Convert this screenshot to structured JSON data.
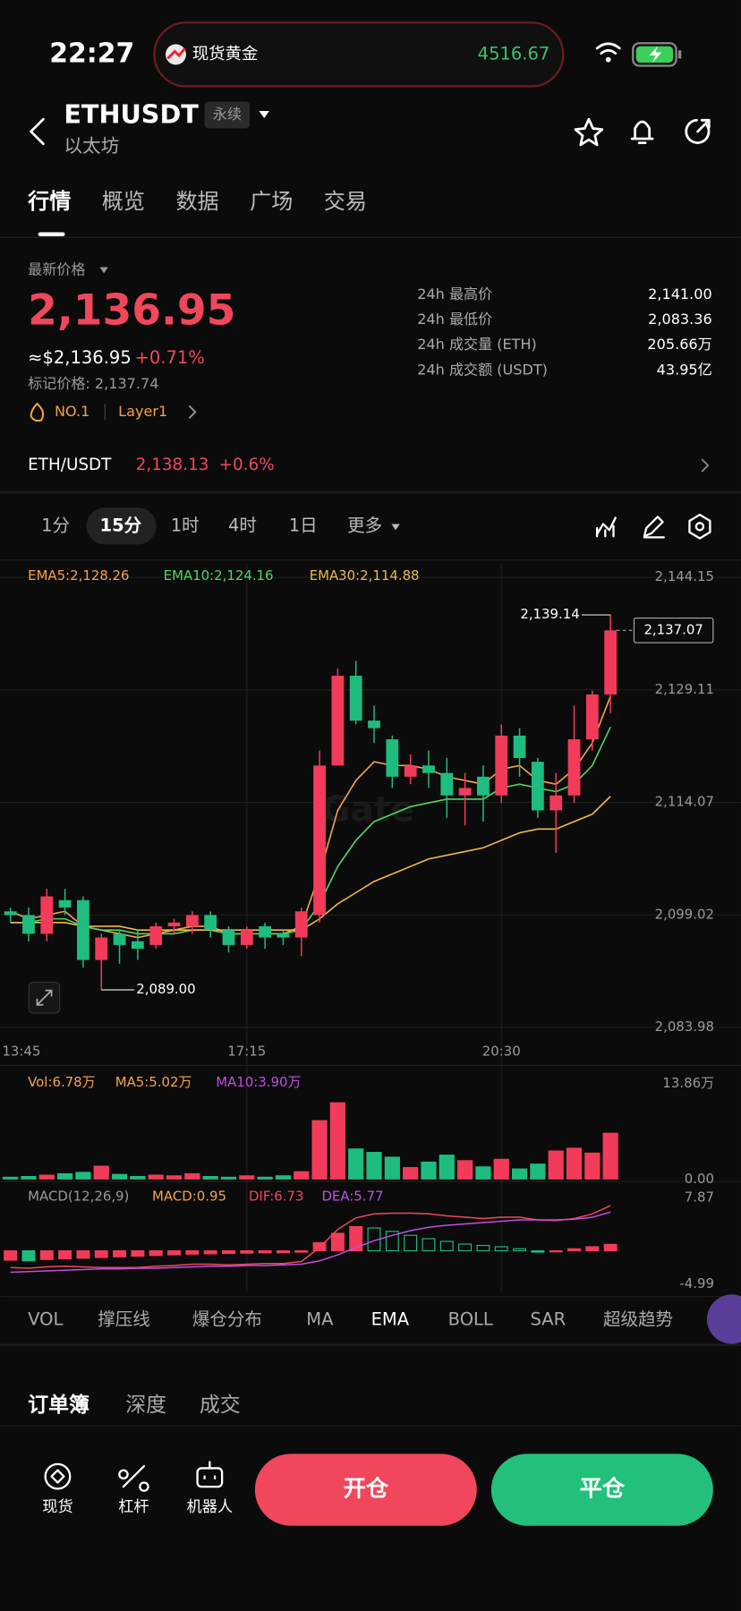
{
  "status": {
    "time": "22:27",
    "ticker": "现货黄金",
    "ticker_value": "4516.67"
  },
  "header": {
    "symbol": "ETHUSDT",
    "tag": "永续",
    "name": "以太坊"
  },
  "tabs": [
    "行情",
    "概览",
    "数据",
    "广场",
    "交易"
  ],
  "price": {
    "label": "最新价格",
    "last": "2,136.95",
    "usd": "≈$2,136.95",
    "change": "+0.71%",
    "mark": "标记价格: 2,137.74",
    "rank": "NO.1",
    "sector": "Layer1"
  },
  "stats": [
    {
      "label": "24h 最高价",
      "value": "2,141.00"
    },
    {
      "label": "24h 最低价",
      "value": "2,083.36"
    },
    {
      "label": "24h 成交量 (ETH)",
      "value": "205.66万"
    },
    {
      "label": "24h 成交额 (USDT)",
      "value": "43.95亿"
    }
  ],
  "spot": {
    "pair": "ETH/USDT",
    "price": "2,138.13",
    "change": "+0.6%"
  },
  "intervals": [
    "1分",
    "15分",
    "1时",
    "4时",
    "1日",
    "更多"
  ],
  "chart": {
    "type": "candlestick",
    "categories": [
      "13:45",
      null,
      null,
      null,
      null,
      null,
      null,
      null,
      null,
      null,
      null,
      null,
      null,
      "17:15",
      null,
      null,
      null,
      null,
      null,
      null,
      null,
      null,
      null,
      null,
      null,
      null,
      null,
      "20:30",
      null,
      null,
      null,
      null,
      null,
      null
    ],
    "open": [
      2099.5,
      2099,
      2096.5,
      2101,
      2101,
      2093,
      2096.5,
      2095.5,
      2095,
      2097.5,
      2097.5,
      2099,
      2097,
      2095,
      2097.5,
      2096.5,
      2096,
      2099,
      2119,
      2131,
      2125,
      2122.5,
      2117.5,
      2119,
      2118,
      2115,
      2117.5,
      2115,
      2123,
      2119.5,
      2113,
      2115,
      2122.5,
      2128.5
    ],
    "high": [
      2100,
      2100,
      2102.5,
      2102.5,
      2101.5,
      2096.5,
      2097,
      2097,
      2098,
      2098.5,
      2099.5,
      2099.5,
      2097.5,
      2097.5,
      2098,
      2097,
      2100,
      2121,
      2132,
      2133,
      2127,
      2123,
      2120.5,
      2121,
      2120,
      2118,
      2119,
      2124.5,
      2124,
      2120,
      2118,
      2127,
      2129,
      2139.14
    ],
    "low": [
      2098,
      2095.5,
      2095.5,
      2099,
      2092,
      2089,
      2092.5,
      2093,
      2094.5,
      2096.5,
      2096.5,
      2096,
      2094,
      2094.5,
      2094.5,
      2095,
      2093.5,
      2098,
      2119,
      2124.5,
      2122,
      2116,
      2116.5,
      2116,
      2112,
      2111,
      2111.5,
      2114,
      2117.5,
      2112,
      2107.3,
      2114,
      2121,
      2126
    ],
    "close": [
      2099,
      2096.5,
      2101.5,
      2100,
      2093,
      2096,
      2095,
      2094.5,
      2097.5,
      2098,
      2099,
      2097,
      2095,
      2097,
      2096,
      2096,
      2099.5,
      2119,
      2131,
      2125,
      2124,
      2117.5,
      2119,
      2118,
      2115,
      2116,
      2115,
      2123,
      2120,
      2113,
      2115,
      2122.5,
      2128.5,
      2137.07
    ],
    "up_color": "#f23b5a",
    "down_color": "#1ebd7f",
    "ylim": [
      2083.98,
      2144.15
    ],
    "yticks": [
      {
        "value": 2144.15,
        "label": "2,144.15"
      },
      {
        "value": 2129.11,
        "label": "2,129.11"
      },
      {
        "value": 2114.07,
        "label": "2,114.07"
      },
      {
        "value": 2099.02,
        "label": "2,099.02"
      },
      {
        "value": 2083.98,
        "label": "2,083.98"
      }
    ],
    "grid": true,
    "ema": [
      {
        "legend": "EMA5:2,128.26",
        "color": "#f5a34a",
        "values": [
          2099.5,
          2098.5,
          2099,
          2099.5,
          2097.5,
          2097,
          2096.5,
          2096,
          2096.5,
          2097,
          2097.5,
          2097.5,
          2096.5,
          2096.5,
          2096.5,
          2096.5,
          2097.5,
          2104.5,
          2113,
          2117,
          2119.5,
          2119,
          2119,
          2118.5,
          2117.5,
          2117,
          2116.5,
          2118.5,
          2119,
          2117,
          2116.5,
          2118.5,
          2122,
          2128.26
        ]
      },
      {
        "legend": "EMA10:2,124.16",
        "color": "#52d65c",
        "values": [
          2098,
          2098,
          2098.5,
          2098.5,
          2097.5,
          2097,
          2097,
          2096.5,
          2096.5,
          2096.5,
          2097,
          2097,
          2096.5,
          2096.5,
          2096.5,
          2096.5,
          2097,
          2100.5,
          2105.5,
          2109,
          2111.5,
          2112.5,
          2113.5,
          2114,
          2114.5,
          2114.5,
          2114.5,
          2116,
          2116.5,
          2116,
          2115.5,
          2116.5,
          2119,
          2124.16
        ]
      },
      {
        "legend": "EMA30:2,114.88",
        "color": "#f0b84a",
        "values": [
          2098,
          2098,
          2098,
          2098,
          2097.5,
          2097.5,
          2097.5,
          2097,
          2097,
          2097,
          2097,
          2097,
          2097,
          2097,
          2097,
          2097,
          2097,
          2098.5,
          2100.5,
          2102,
          2103.5,
          2104.5,
          2105.5,
          2106.5,
          2107,
          2107.5,
          2108,
          2109,
          2110,
          2110.5,
          2110.5,
          2111.5,
          2112.5,
          2114.88
        ]
      }
    ],
    "high_label": "2,139.14",
    "low_label": "2,089.00",
    "last_label": "2,137.07",
    "volume": {
      "legend": [
        "Vol:6.78万",
        "MA5:5.02万",
        "MA10:3.90万"
      ],
      "legend_colors": [
        "#f5a34a",
        "#f5a34a",
        "#c04fe0"
      ],
      "values": [
        0.4,
        0.5,
        0.7,
        0.9,
        1.1,
        2.0,
        0.8,
        0.5,
        0.7,
        0.6,
        0.9,
        0.5,
        0.4,
        0.6,
        0.4,
        0.6,
        1.2,
        8.6,
        11.2,
        4.5,
        4.0,
        3.3,
        1.8,
        2.6,
        3.6,
        2.8,
        1.9,
        3.0,
        1.6,
        2.3,
        4.2,
        4.6,
        3.9,
        6.78
      ],
      "ylim": [
        0,
        13.86
      ],
      "yticks": [
        {
          "value": 13.86,
          "label": "13.86万"
        },
        {
          "value": 0,
          "label": "0.00"
        }
      ]
    },
    "macd": {
      "legend": [
        "MACD(12,26,9)",
        "MACD:0.95",
        "DIF:6.73",
        "DEA:5.77"
      ],
      "legend_colors": [
        "#9a9a9a",
        "#f5a34a",
        "#f0475d",
        "#c04fe0"
      ],
      "values": [
        -1.4,
        -1.5,
        -1.3,
        -1.2,
        -1.1,
        -1.0,
        -0.9,
        -0.8,
        -0.7,
        -0.6,
        -0.5,
        -0.45,
        -0.4,
        -0.35,
        -0.3,
        -0.3,
        -0.2,
        1.2,
        2.6,
        3.6,
        3.4,
        2.9,
        2.3,
        1.8,
        1.4,
        1.0,
        0.8,
        0.6,
        0.3,
        -0.2,
        -0.1,
        0.3,
        0.6,
        0.95
      ],
      "dif": [
        -2.5,
        -2.6,
        -2.4,
        -2.3,
        -2.4,
        -2.5,
        -2.5,
        -2.5,
        -2.3,
        -2.2,
        -2.0,
        -2.0,
        -2.1,
        -2.0,
        -1.9,
        -1.9,
        -1.6,
        0.5,
        3.2,
        4.9,
        5.5,
        5.6,
        5.6,
        5.5,
        5.2,
        5.0,
        4.8,
        5.0,
        5.0,
        4.6,
        4.5,
        4.8,
        5.5,
        6.73
      ],
      "dea": [
        -3.2,
        -3.1,
        -3.0,
        -2.9,
        -2.8,
        -2.7,
        -2.7,
        -2.6,
        -2.6,
        -2.5,
        -2.4,
        -2.3,
        -2.3,
        -2.2,
        -2.2,
        -2.1,
        -2.0,
        -1.5,
        -0.6,
        0.5,
        1.5,
        2.3,
        3.0,
        3.5,
        3.8,
        4.0,
        4.2,
        4.4,
        4.6,
        4.6,
        4.6,
        4.7,
        5.0,
        5.77
      ],
      "dif_color": "#f0475d",
      "dea_color": "#c04fe0",
      "ylim": [
        -4.99,
        7.87
      ],
      "yticks": [
        7.87,
        -4.99
      ]
    }
  },
  "indicators": [
    "VOL",
    "撑压线",
    "爆仓分布",
    "MA",
    "EMA",
    "BOLL",
    "SAR",
    "超级趋势"
  ],
  "book_tabs": [
    "订单簿",
    "深度",
    "成交"
  ],
  "bottom": {
    "tools": [
      "现货",
      "杠杆",
      "机器人"
    ],
    "open": "开仓",
    "close": "平仓"
  }
}
